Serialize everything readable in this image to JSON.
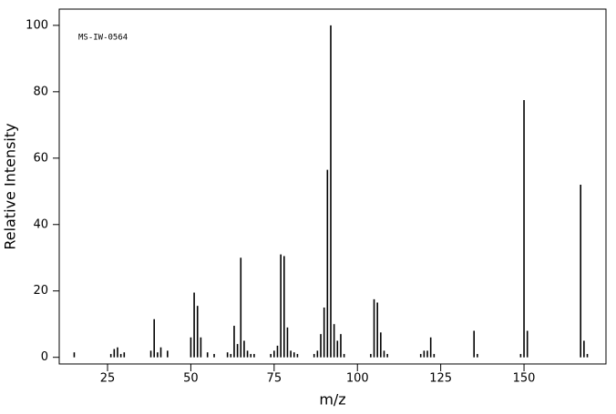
{
  "chart_data": {
    "type": "stick",
    "annotation": "MS-IW-0564",
    "xlabel": "m/z",
    "ylabel": "Relative Intensity",
    "x": [
      15,
      26,
      27,
      28,
      29,
      30,
      38,
      39,
      40,
      41,
      43,
      50,
      51,
      52,
      53,
      55,
      57,
      61,
      62,
      63,
      64,
      65,
      66,
      67,
      68,
      69,
      74,
      75,
      76,
      77,
      78,
      79,
      80,
      81,
      82,
      87,
      88,
      89,
      90,
      91,
      92,
      93,
      94,
      95,
      96,
      104,
      105,
      106,
      107,
      108,
      109,
      119,
      120,
      121,
      122,
      123,
      135,
      136,
      149,
      150,
      151,
      167,
      168,
      169
    ],
    "values": [
      1.5,
      1,
      2.5,
      3,
      1,
      1.5,
      2,
      11.5,
      1.5,
      3,
      2,
      6,
      19.5,
      15.5,
      6,
      1.5,
      1,
      1.5,
      1,
      9.5,
      4,
      30,
      5,
      2,
      1,
      1,
      1,
      2,
      3.5,
      31,
      30.5,
      9,
      2,
      1.5,
      1,
      1,
      2,
      7,
      15,
      56.5,
      100,
      10,
      5,
      7,
      1,
      1,
      17.5,
      16.5,
      7.5,
      2,
      1,
      1,
      2,
      2,
      6,
      1,
      8,
      1,
      1,
      77.5,
      8,
      52,
      5,
      1
    ],
    "color": "#000000",
    "xlim": [
      10.5,
      174.6
    ],
    "ylim": [
      -2,
      104.9
    ],
    "xticks": [
      25,
      50,
      75,
      100,
      125,
      150
    ],
    "yticks": [
      0,
      20,
      40,
      60,
      80,
      100
    ]
  }
}
